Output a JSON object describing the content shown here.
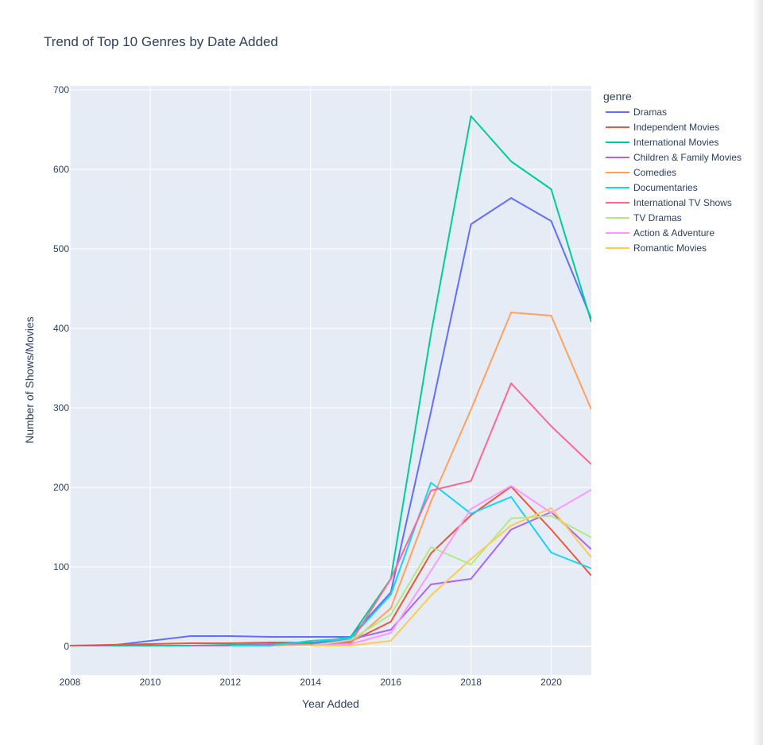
{
  "chart_data": {
    "type": "line",
    "title": "Trend of Top 10 Genres by Date Added",
    "xlabel": "Year Added",
    "ylabel": "Number of Shows/Movies",
    "xlim": [
      2008,
      2021
    ],
    "ylim": [
      -36,
      705
    ],
    "x_ticks": [
      2008,
      2010,
      2012,
      2014,
      2016,
      2018,
      2020
    ],
    "y_ticks": [
      0,
      100,
      200,
      300,
      400,
      500,
      600,
      700
    ],
    "legend_title": "genre",
    "legend_position": "right",
    "grid": true,
    "series": [
      {
        "name": "Dramas",
        "color": "#636efa",
        "x": [
          2008,
          2009,
          2010,
          2011,
          2012,
          2013,
          2014,
          2015,
          2016,
          2017,
          2018,
          2019,
          2020,
          2021
        ],
        "y": [
          1,
          1,
          7,
          13,
          13,
          12,
          12,
          12,
          68,
          295,
          531,
          564,
          535,
          412
        ]
      },
      {
        "name": "Independent Movies",
        "color": "#EF553B",
        "x": [
          2008,
          2009,
          2010,
          2011,
          2012,
          2013,
          2014,
          2015,
          2016,
          2017,
          2018,
          2019,
          2020,
          2021
        ],
        "y": [
          1,
          2,
          3,
          4,
          4,
          5,
          5,
          6,
          31,
          117,
          165,
          201,
          147,
          89
        ]
      },
      {
        "name": "International Movies",
        "color": "#00cc96",
        "x": [
          2009,
          2010,
          2011,
          2012,
          2013,
          2014,
          2015,
          2016,
          2017,
          2018,
          2019,
          2020,
          2021
        ],
        "y": [
          1,
          1,
          1,
          2,
          3,
          4,
          12,
          85,
          393,
          667,
          610,
          575,
          408
        ]
      },
      {
        "name": "Children & Family Movies",
        "color": "#ab63fa",
        "x": [
          2011,
          2012,
          2013,
          2014,
          2015,
          2016,
          2017,
          2018,
          2019,
          2020,
          2021
        ],
        "y": [
          1,
          1,
          2,
          3,
          9,
          21,
          78,
          85,
          147,
          169,
          122
        ]
      },
      {
        "name": "Comedies",
        "color": "#FFA15A",
        "x": [
          2013,
          2014,
          2015,
          2016,
          2017,
          2018,
          2019,
          2020,
          2021
        ],
        "y": [
          1,
          2,
          4,
          48,
          182,
          298,
          420,
          416,
          298
        ]
      },
      {
        "name": "Documentaries",
        "color": "#19d3f3",
        "x": [
          2012,
          2013,
          2014,
          2015,
          2016,
          2017,
          2018,
          2019,
          2020,
          2021
        ],
        "y": [
          1,
          1,
          7,
          10,
          65,
          206,
          167,
          188,
          118,
          98
        ]
      },
      {
        "name": "International TV Shows",
        "color": "#FF6692",
        "x": [
          2014,
          2015,
          2016,
          2017,
          2018,
          2019,
          2020,
          2021
        ],
        "y": [
          2,
          5,
          85,
          196,
          208,
          331,
          277,
          229
        ]
      },
      {
        "name": "TV Dramas",
        "color": "#B6E880",
        "x": [
          2014,
          2015,
          2016,
          2017,
          2018,
          2019,
          2020,
          2021
        ],
        "y": [
          1,
          8,
          40,
          125,
          103,
          161,
          164,
          137
        ]
      },
      {
        "name": "Action & Adventure",
        "color": "#FF97FF",
        "x": [
          2014,
          2015,
          2016,
          2017,
          2018,
          2019,
          2020,
          2021
        ],
        "y": [
          1,
          3,
          17,
          95,
          173,
          202,
          168,
          197
        ]
      },
      {
        "name": "Romantic Movies",
        "color": "#FECB52",
        "x": [
          2014,
          2015,
          2016,
          2017,
          2018,
          2019,
          2020,
          2021
        ],
        "y": [
          1,
          1,
          7,
          64,
          110,
          152,
          174,
          112
        ]
      }
    ]
  }
}
